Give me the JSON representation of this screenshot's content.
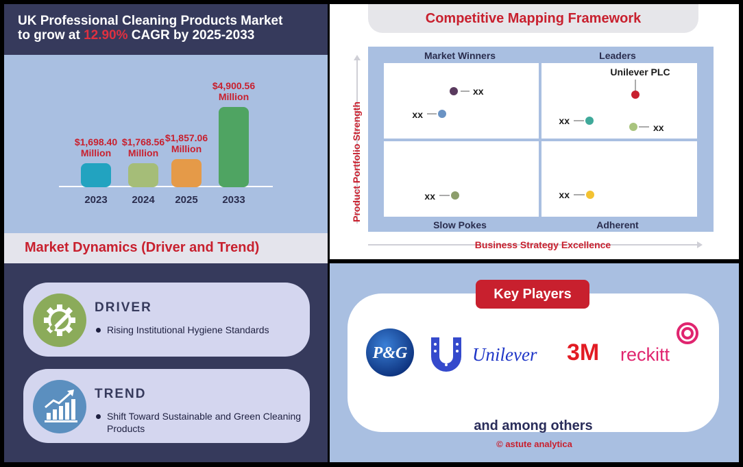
{
  "title": {
    "prefix": "UK Professional Cleaning Products Market",
    "line2_a": "to grow at ",
    "cagr": "12.90%",
    "line2_b": " CAGR by 2025-2033"
  },
  "chart_data": {
    "type": "bar",
    "categories": [
      "2023",
      "2024",
      "2025",
      "2033"
    ],
    "values": [
      1698.4,
      1768.56,
      1857.06,
      4900.56
    ],
    "value_labels": [
      [
        "$1,698.40",
        "Million"
      ],
      [
        "$1,768.56",
        "Million"
      ],
      [
        "$1,857.06",
        "Million"
      ],
      [
        "$4,900.56",
        "Million"
      ]
    ],
    "colors": [
      "#22a3c0",
      "#a5bd78",
      "#e59a48",
      "#4fa462"
    ],
    "label_color": "#c8202e",
    "title": "",
    "xlabel": "",
    "ylabel": ""
  },
  "dynamics": {
    "header": "Market Dynamics (Driver and Trend)",
    "driver": {
      "title": "DRIVER",
      "text": "Rising Institutional Hygiene Standards",
      "icon": "gear-wrench-icon",
      "color": "#8bab5a"
    },
    "trend": {
      "title": "TREND",
      "text": "Shift Toward Sustainable and Green Cleaning Products",
      "icon": "growth-chart-icon",
      "color": "#5b8fbf"
    }
  },
  "matrix": {
    "title": "Competitive Mapping Framework",
    "y_axis_label": "Product Portfolio Strength",
    "x_axis_label": "Business Strategy Excellence",
    "quadrants": {
      "top_left": "Market Winners",
      "top_right": "Leaders",
      "bottom_left": "Slow Pokes",
      "bottom_right": "Adherent"
    },
    "points": [
      {
        "label": "xx",
        "quadrant": "top_left",
        "color": "#5a3a5e"
      },
      {
        "label": "xx",
        "quadrant": "top_left",
        "color": "#6a93c4"
      },
      {
        "label": "Unilever PLC",
        "quadrant": "top_right",
        "color": "#c8202e"
      },
      {
        "label": "xx",
        "quadrant": "top_right",
        "color": "#3fa99a"
      },
      {
        "label": "xx",
        "quadrant": "top_right",
        "color": "#a9c47e"
      },
      {
        "label": "xx",
        "quadrant": "bottom_left",
        "color": "#8d9e6c"
      },
      {
        "label": "xx",
        "quadrant": "bottom_right",
        "color": "#f3c232"
      }
    ]
  },
  "players": {
    "badge": "Key Players",
    "logos": [
      {
        "name": "P&G",
        "text": "P&G"
      },
      {
        "name": "Unilever",
        "text": "Unilever",
        "mark": "U"
      },
      {
        "name": "3M",
        "text": "3M"
      },
      {
        "name": "Reckitt",
        "text": "reckitt"
      }
    ],
    "among": "and among others",
    "copyright": "© astute analytica"
  }
}
